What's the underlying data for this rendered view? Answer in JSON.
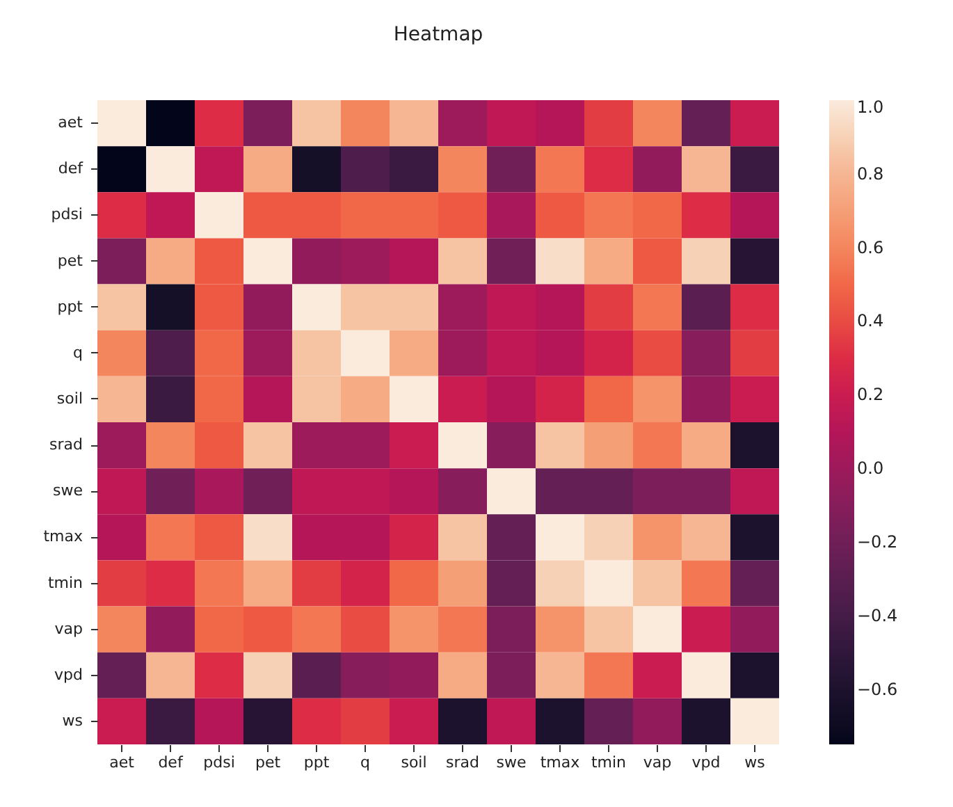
{
  "chart_data": {
    "type": "heatmap",
    "title": "Heatmap",
    "categories": [
      "aet",
      "def",
      "pdsi",
      "pet",
      "ppt",
      "q",
      "soil",
      "srad",
      "swe",
      "tmax",
      "tmin",
      "vap",
      "vpd",
      "ws"
    ],
    "y_categories": [
      "aet",
      "def",
      "pdsi",
      "pet",
      "ppt",
      "q",
      "soil",
      "srad",
      "swe",
      "tmax",
      "tmin",
      "vap",
      "vpd",
      "ws"
    ],
    "cells": [
      [
        1,
        -0.75,
        0.3,
        -0.15,
        0.85,
        0.6,
        0.8,
        0.0,
        0.15,
        0.1,
        0.35,
        0.6,
        -0.25,
        0.2
      ],
      [
        -0.75,
        1,
        0.15,
        0.75,
        -0.65,
        -0.35,
        -0.45,
        0.6,
        -0.2,
        0.55,
        0.3,
        -0.05,
        0.8,
        -0.45
      ],
      [
        0.3,
        0.15,
        1,
        0.45,
        0.45,
        0.5,
        0.5,
        0.45,
        0.05,
        0.45,
        0.55,
        0.5,
        0.3,
        0.1
      ],
      [
        -0.15,
        0.75,
        0.45,
        1,
        -0.05,
        0.0,
        0.1,
        0.85,
        -0.2,
        0.95,
        0.75,
        0.45,
        0.9,
        -0.55
      ],
      [
        0.85,
        -0.65,
        0.45,
        -0.05,
        1,
        0.85,
        0.85,
        0.0,
        0.15,
        0.1,
        0.35,
        0.55,
        -0.3,
        0.3
      ],
      [
        0.6,
        -0.35,
        0.5,
        0.0,
        0.85,
        1,
        0.75,
        0.0,
        0.15,
        0.1,
        0.25,
        0.4,
        -0.1,
        0.35
      ],
      [
        0.8,
        -0.45,
        0.5,
        0.1,
        0.85,
        0.75,
        1,
        0.2,
        0.1,
        0.25,
        0.5,
        0.65,
        -0.05,
        0.2
      ],
      [
        0.0,
        0.6,
        0.45,
        0.85,
        0.0,
        0.0,
        0.2,
        1,
        -0.1,
        0.85,
        0.7,
        0.55,
        0.75,
        -0.6
      ],
      [
        0.15,
        -0.2,
        0.05,
        -0.2,
        0.15,
        0.15,
        0.1,
        -0.1,
        1,
        -0.25,
        -0.25,
        -0.15,
        -0.15,
        0.15
      ],
      [
        0.1,
        0.55,
        0.45,
        0.95,
        0.1,
        0.1,
        0.25,
        0.85,
        -0.25,
        1,
        0.9,
        0.65,
        0.8,
        -0.6
      ],
      [
        0.35,
        0.3,
        0.55,
        0.75,
        0.35,
        0.25,
        0.5,
        0.7,
        -0.25,
        0.9,
        1,
        0.85,
        0.55,
        -0.25
      ],
      [
        0.6,
        -0.05,
        0.5,
        0.45,
        0.55,
        0.4,
        0.65,
        0.55,
        -0.15,
        0.65,
        0.85,
        1,
        0.2,
        -0.05
      ],
      [
        -0.25,
        0.8,
        0.3,
        0.9,
        -0.3,
        -0.1,
        -0.05,
        0.75,
        -0.15,
        0.8,
        0.55,
        0.2,
        1,
        -0.6
      ],
      [
        0.2,
        -0.45,
        0.1,
        -0.55,
        0.3,
        0.35,
        0.2,
        -0.6,
        0.15,
        -0.6,
        -0.25,
        -0.05,
        -0.6,
        1
      ]
    ],
    "clim": [
      -0.75,
      1.0
    ],
    "cticks": [
      {
        "value": 1.0,
        "label": "1.0"
      },
      {
        "value": 0.8,
        "label": "0.8"
      },
      {
        "value": 0.6,
        "label": "0.6"
      },
      {
        "value": 0.4,
        "label": "0.4"
      },
      {
        "value": 0.2,
        "label": "0.2"
      },
      {
        "value": 0.0,
        "label": "0.0"
      },
      {
        "value": -0.2,
        "label": "−0.2"
      },
      {
        "value": -0.4,
        "label": "−0.4"
      },
      {
        "value": -0.6,
        "label": "−0.6"
      }
    ]
  }
}
